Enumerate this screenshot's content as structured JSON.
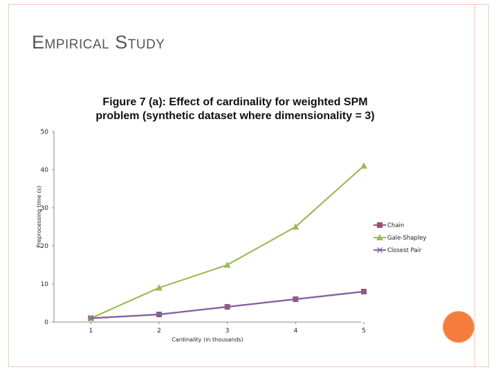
{
  "slide": {
    "title": "Empirical Study"
  },
  "chart_data": {
    "type": "line",
    "title_lines": [
      "Figure 7 (a): Effect of cardinality for weighted SPM",
      "problem (synthetic dataset where dimensionality = 3)"
    ],
    "xlabel": "Cardinality (in thousands)",
    "ylabel": "Preprocessing time (s)",
    "x": [
      1,
      2,
      3,
      4,
      5
    ],
    "ylim": [
      0,
      50
    ],
    "yticks": [
      0,
      10,
      20,
      30,
      40,
      50
    ],
    "grid": false,
    "legend_position": "right",
    "series": [
      {
        "name": "Chain",
        "values": [
          1,
          2,
          4,
          6,
          8
        ],
        "color": "#9e4f6d",
        "marker": "square"
      },
      {
        "name": "Gale-Shapley",
        "values": [
          1,
          9,
          15,
          25,
          41
        ],
        "color": "#9bbb59",
        "marker": "triangle"
      },
      {
        "name": "Closest Pair",
        "values": [
          1,
          2,
          4,
          6,
          8
        ],
        "color": "#8064a2",
        "marker": "x"
      }
    ]
  }
}
